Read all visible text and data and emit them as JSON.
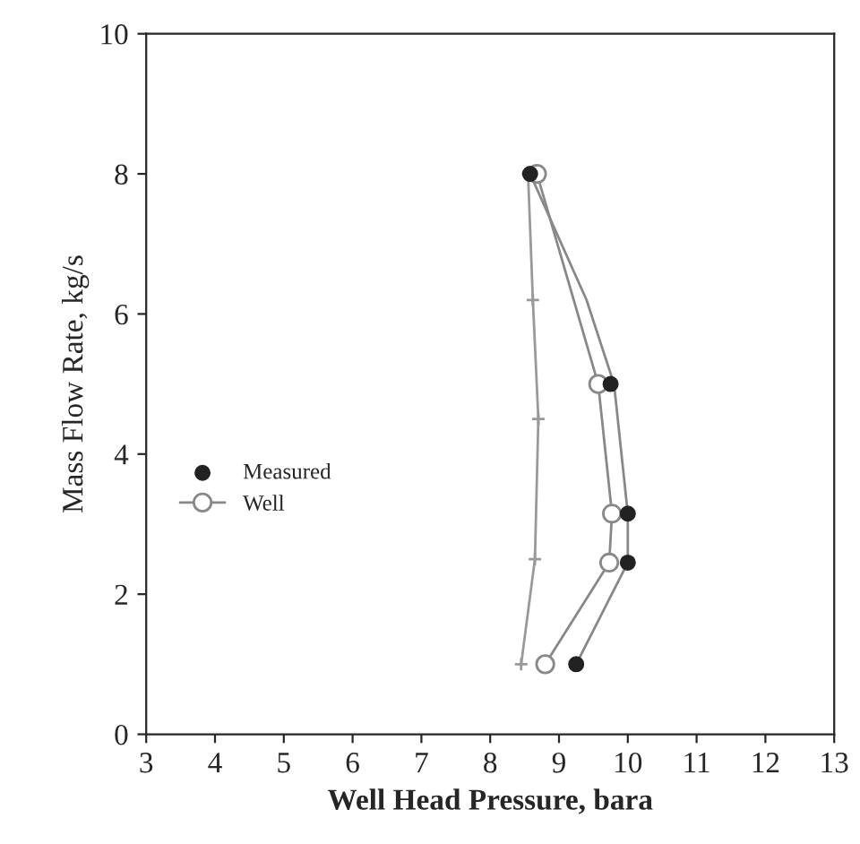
{
  "chart_data": {
    "type": "line",
    "xlabel": "Well Head Pressure, bara",
    "ylabel": "Mass Flow Rate, kg/s",
    "xlim": [
      3,
      13
    ],
    "xticks": [
      3,
      4,
      5,
      6,
      7,
      8,
      9,
      10,
      11,
      12,
      13
    ],
    "ylim": [
      0,
      10
    ],
    "yticks": [
      0,
      2,
      4,
      6,
      8,
      10
    ],
    "grid": false,
    "legend": "left",
    "series": [
      {
        "name": "Measured",
        "type": "scatter",
        "marker": "circle",
        "color": "#222222",
        "x": [
          8.58,
          9.75,
          10.0,
          10.0,
          9.25
        ],
        "values": [
          8,
          5,
          3.15,
          2.45,
          1
        ]
      },
      {
        "name": "Well",
        "marker": "circle",
        "color": "#888888",
        "x": [
          8.68,
          9.57,
          9.77,
          9.73,
          8.8
        ],
        "values": [
          8,
          5,
          3.15,
          2.45,
          1
        ]
      },
      {
        "marker": "cross",
        "color": "#999999",
        "x": [
          8.55,
          8.62,
          8.7,
          8.65,
          8.45
        ],
        "values": [
          8,
          6.2,
          4.5,
          2.5,
          1
        ]
      },
      {
        "marker": "none",
        "color": "#888888",
        "x": [
          8.58,
          9.4,
          9.8,
          10.0,
          10.0,
          9.25
        ],
        "values": [
          8,
          6.2,
          5,
          3.15,
          2.45,
          1
        ]
      }
    ]
  }
}
